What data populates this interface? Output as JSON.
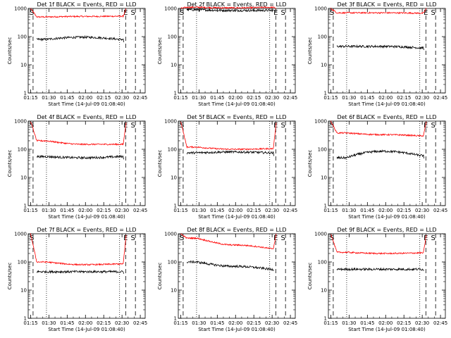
{
  "chart_data": {
    "type": "line",
    "x_tick_labels": [
      "01:15",
      "01:30",
      "01:45",
      "02:00",
      "02:15",
      "02:30",
      "02:45"
    ],
    "x_tick_minutes": [
      75,
      90,
      105,
      120,
      135,
      150,
      165
    ],
    "xlim_minutes": [
      73,
      169
    ],
    "y_tick_labels": [
      "1",
      "10",
      "100",
      "1000"
    ],
    "ylim": [
      1,
      1000
    ],
    "y_scale": "log",
    "xlabel": "Start Time (14-Jul-09 01:08:40)",
    "ylabel": "Counts/sec",
    "series_colors": {
      "events": "#000000",
      "lld": "#ff0000"
    },
    "dashed_lines_minutes": [
      77,
      153,
      161
    ],
    "dotted_lines_minutes": [
      88,
      148
    ],
    "markers": [
      {
        "text": "S",
        "at_minutes": 76
      },
      {
        "text": "E",
        "at_minutes": 153
      },
      {
        "text": "S",
        "at_minutes": 159
      }
    ],
    "panels": [
      {
        "title": "Det 1f BLACK = Events, RED = LLD",
        "red": {
          "s": 1000,
          "l": 500,
          "m": 520,
          "r": 530,
          "e": 1000
        },
        "black": {
          "s": 50,
          "l": 80,
          "m": 95,
          "r": 80,
          "e": 60
        }
      },
      {
        "title": "Det 2f BLACK = Events, RED = LLD",
        "red": {
          "s": 1000,
          "l": 1100,
          "m": 1050,
          "r": 1100,
          "e": 1000
        },
        "black": {
          "s": 900,
          "l": 900,
          "m": 850,
          "r": 850,
          "e": 850
        }
      },
      {
        "title": "Det 3f BLACK = Events, RED = LLD",
        "red": {
          "s": 1000,
          "l": 700,
          "m": 700,
          "r": 680,
          "e": 1000
        },
        "black": {
          "s": 25,
          "l": 45,
          "m": 45,
          "r": 40,
          "e": 30
        }
      },
      {
        "title": "Det 4f BLACK = Events, RED = LLD",
        "red": {
          "s": 1000,
          "l": 200,
          "m": 150,
          "r": 150,
          "e": 1000
        },
        "black": {
          "s": 40,
          "l": 55,
          "m": 50,
          "r": 55,
          "e": 45
        }
      },
      {
        "title": "Det 5f BLACK = Events, RED = LLD",
        "red": {
          "s": 1000,
          "l": 120,
          "m": 100,
          "r": 105,
          "e": 1000
        },
        "black": {
          "s": 50,
          "l": 75,
          "m": 80,
          "r": 75,
          "e": 55
        }
      },
      {
        "title": "Det 6f BLACK = Events, RED = LLD",
        "red": {
          "s": 1000,
          "l": 380,
          "m": 330,
          "r": 300,
          "e": 1000
        },
        "black": {
          "s": 40,
          "l": 50,
          "m": 85,
          "r": 60,
          "e": 40
        }
      },
      {
        "title": "Det 7f BLACK = Events, RED = LLD",
        "red": {
          "s": 1000,
          "l": 100,
          "m": 80,
          "r": 85,
          "e": 1000
        },
        "black": {
          "s": 30,
          "l": 45,
          "m": 45,
          "r": 45,
          "e": 40
        }
      },
      {
        "title": "Det 8f BLACK = Events, RED = LLD",
        "red": {
          "s": 1000,
          "l": 700,
          "m": 400,
          "r": 300,
          "e": 1000
        },
        "black": {
          "s": 60,
          "l": 100,
          "m": 70,
          "r": 55,
          "e": 50
        }
      },
      {
        "title": "Det 9f BLACK = Events, RED = LLD",
        "red": {
          "s": 1000,
          "l": 220,
          "m": 200,
          "r": 210,
          "e": 1000
        },
        "black": {
          "s": 30,
          "l": 55,
          "m": 55,
          "r": 55,
          "e": 45
        }
      }
    ]
  }
}
